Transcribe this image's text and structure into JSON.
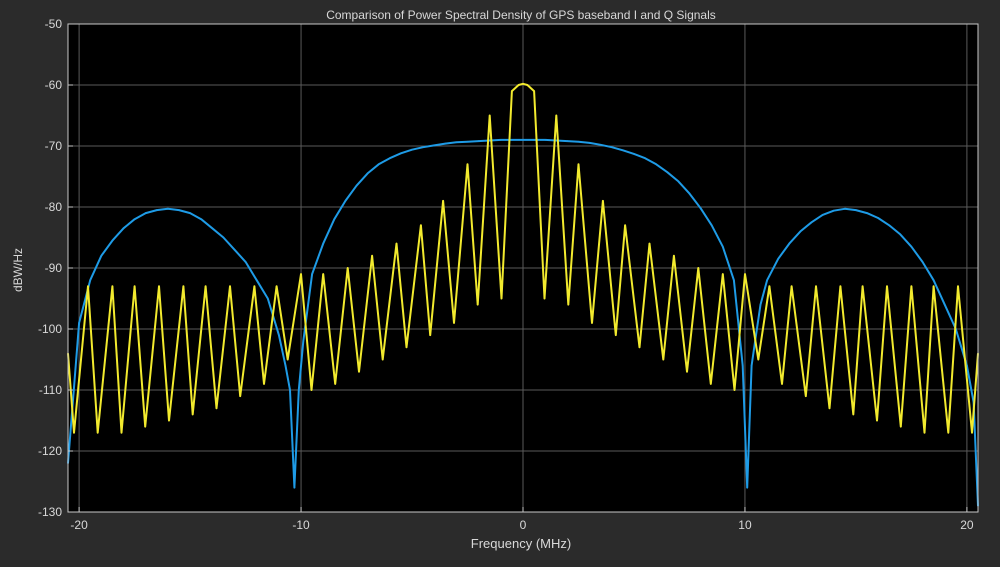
{
  "colors": {
    "figure_background": "#2b2b2b",
    "axes_background": "#000000",
    "grid": "#5a5a5a",
    "axes_border": "#c8c8c8",
    "text": "#d8d8d8",
    "series_1": "#1e9be6",
    "series_2": "#f2ea2e"
  },
  "chart_data": {
    "type": "line",
    "title": "Comparison of Power Spectral Density of GPS baseband I and Q Signals",
    "xlabel": "Frequency (MHz)",
    "ylabel": "dBW/Hz",
    "xlim": [
      -20.5,
      20.5
    ],
    "ylim": [
      -130,
      -50
    ],
    "xticks": [
      -20,
      -10,
      0,
      10,
      20
    ],
    "yticks": [
      -130,
      -120,
      -110,
      -100,
      -90,
      -80,
      -70,
      -60,
      -50
    ],
    "grid": true,
    "legend": "none",
    "series": [
      {
        "color": "#1e9be6",
        "x": [
          -20.5,
          -20,
          -19.5,
          -19,
          -18.5,
          -18,
          -17.5,
          -17,
          -16.5,
          -16,
          -15.5,
          -15,
          -14.5,
          -14,
          -13.5,
          -13,
          -12.5,
          -12,
          -11.5,
          -11,
          -10.7,
          -10.5,
          -10.3,
          -10.1,
          -9.9,
          -9.5,
          -9,
          -8.5,
          -8,
          -7.5,
          -7,
          -6.5,
          -6,
          -5.5,
          -5,
          -4.5,
          -4,
          -3.5,
          -3,
          -2.5,
          -2,
          -1.5,
          -1,
          -0.5,
          0,
          0.5,
          1,
          1.5,
          2,
          2.5,
          3,
          3.5,
          4,
          4.5,
          5,
          5.5,
          6,
          6.5,
          7,
          7.5,
          8,
          8.5,
          9,
          9.5,
          9.9,
          10.1,
          10.3,
          10.5,
          10.7,
          11,
          11.5,
          12,
          12.5,
          13,
          13.5,
          14,
          14.5,
          15,
          15.5,
          16,
          16.5,
          17,
          17.5,
          18,
          18.5,
          19,
          19.5,
          20,
          20.3,
          20.5
        ],
        "values": [
          -122,
          -99,
          -92,
          -88,
          -85.5,
          -83.5,
          -82,
          -81,
          -80.5,
          -80.3,
          -80.5,
          -81,
          -82,
          -83.5,
          -85,
          -87,
          -89,
          -92,
          -95,
          -101,
          -106,
          -110,
          -126,
          -110,
          -102,
          -91,
          -86,
          -82,
          -79,
          -76.5,
          -74.5,
          -73,
          -72,
          -71.2,
          -70.6,
          -70.2,
          -69.9,
          -69.6,
          -69.4,
          -69.3,
          -69.2,
          -69.1,
          -69,
          -69,
          -69,
          -69,
          -69,
          -69.1,
          -69.2,
          -69.3,
          -69.5,
          -69.8,
          -70.2,
          -70.7,
          -71.3,
          -72,
          -73,
          -74.3,
          -75.8,
          -77.8,
          -80.2,
          -83,
          -86.5,
          -92,
          -106,
          -126,
          -106,
          -101,
          -96,
          -92,
          -88.5,
          -86,
          -84,
          -82.5,
          -81.3,
          -80.6,
          -80.3,
          -80.5,
          -81,
          -81.8,
          -83,
          -84.5,
          -86.5,
          -89,
          -92,
          -96,
          -100,
          -106,
          -112,
          -129
        ]
      },
      {
        "color": "#f2ea2e",
        "x": [
          -20.5,
          -20.23,
          -19.6,
          -19.16,
          -18.5,
          -18.09,
          -17.5,
          -17.02,
          -16.4,
          -15.95,
          -15.3,
          -14.88,
          -14.3,
          -13.81,
          -13.2,
          -12.74,
          -12.1,
          -11.67,
          -11.1,
          -10.6,
          -10,
          -9.53,
          -9,
          -8.46,
          -7.9,
          -7.39,
          -6.8,
          -6.32,
          -5.7,
          -5.25,
          -4.6,
          -4.18,
          -3.6,
          -3.11,
          -2.5,
          -2.04,
          -1.5,
          -0.97,
          -0.5,
          -0.2,
          0,
          0.2,
          0.5,
          0.97,
          1.5,
          2.04,
          2.5,
          3.11,
          3.6,
          4.18,
          4.6,
          5.25,
          5.7,
          6.32,
          6.8,
          7.39,
          7.9,
          8.46,
          9,
          9.53,
          10,
          10.6,
          11.1,
          11.67,
          12.1,
          12.74,
          13.2,
          13.81,
          14.3,
          14.88,
          15.3,
          15.95,
          16.4,
          17.02,
          17.5,
          18.09,
          18.5,
          19.16,
          19.6,
          20.23,
          20.5
        ],
        "values": [
          -104,
          -117,
          -93,
          -117,
          -93,
          -117,
          -93,
          -116,
          -93,
          -115,
          -93,
          -114,
          -93,
          -113,
          -93,
          -111,
          -93,
          -109,
          -93,
          -105,
          -91,
          -110,
          -91,
          -109,
          -90,
          -107,
          -88,
          -105,
          -86,
          -103,
          -83,
          -101,
          -79,
          -99,
          -73,
          -96,
          -65,
          -95,
          -61,
          -60,
          -59.8,
          -60,
          -61,
          -95,
          -65,
          -96,
          -73,
          -99,
          -79,
          -101,
          -83,
          -103,
          -86,
          -105,
          -88,
          -107,
          -90,
          -109,
          -91,
          -110,
          -91,
          -105,
          -93,
          -109,
          -93,
          -111,
          -93,
          -113,
          -93,
          -114,
          -93,
          -115,
          -93,
          -116,
          -93,
          -117,
          -93,
          -117,
          -93,
          -117,
          -104
        ]
      }
    ]
  }
}
